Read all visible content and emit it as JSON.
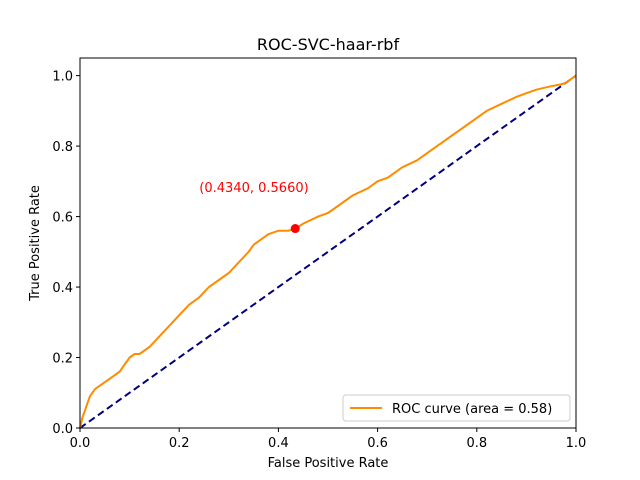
{
  "chart_data": {
    "type": "line",
    "title": "ROC-SVC-haar-rbf",
    "xlabel": "False Positive Rate",
    "ylabel": "True Positive Rate",
    "xlim": [
      0.0,
      1.0
    ],
    "ylim": [
      0.0,
      1.05
    ],
    "xticks": [
      "0.0",
      "0.2",
      "0.4",
      "0.6",
      "0.8",
      "1.0"
    ],
    "yticks": [
      "0.0",
      "0.2",
      "0.4",
      "0.6",
      "0.8",
      "1.0"
    ],
    "grid": false,
    "legend": {
      "position": "lower-right",
      "entries": [
        "ROC curve (area = 0.58)"
      ]
    },
    "series": [
      {
        "name": "ROC curve (area = 0.58)",
        "color": "#ff8c00",
        "style": "solid",
        "x": [
          0.0,
          0.005,
          0.01,
          0.015,
          0.02,
          0.03,
          0.04,
          0.05,
          0.06,
          0.08,
          0.1,
          0.11,
          0.12,
          0.13,
          0.14,
          0.16,
          0.18,
          0.2,
          0.22,
          0.24,
          0.26,
          0.28,
          0.3,
          0.32,
          0.34,
          0.35,
          0.36,
          0.37,
          0.38,
          0.4,
          0.42,
          0.434,
          0.45,
          0.48,
          0.5,
          0.52,
          0.55,
          0.58,
          0.6,
          0.62,
          0.65,
          0.68,
          0.7,
          0.72,
          0.75,
          0.78,
          0.8,
          0.82,
          0.85,
          0.88,
          0.9,
          0.92,
          0.95,
          0.97,
          0.98,
          0.99,
          1.0
        ],
        "y": [
          0.0,
          0.03,
          0.05,
          0.07,
          0.09,
          0.11,
          0.12,
          0.13,
          0.14,
          0.16,
          0.2,
          0.21,
          0.21,
          0.22,
          0.23,
          0.26,
          0.29,
          0.32,
          0.35,
          0.37,
          0.4,
          0.42,
          0.44,
          0.47,
          0.5,
          0.52,
          0.53,
          0.54,
          0.55,
          0.56,
          0.56,
          0.566,
          0.58,
          0.6,
          0.61,
          0.63,
          0.66,
          0.68,
          0.7,
          0.71,
          0.74,
          0.76,
          0.78,
          0.8,
          0.83,
          0.86,
          0.88,
          0.9,
          0.92,
          0.94,
          0.95,
          0.96,
          0.97,
          0.975,
          0.98,
          0.99,
          1.0
        ]
      },
      {
        "name": "",
        "color": "#000080",
        "style": "dashed",
        "x": [
          0.0,
          1.0
        ],
        "y": [
          0.0,
          1.0
        ]
      }
    ],
    "point": {
      "x": 0.434,
      "y": 0.566,
      "color": "#ff0000",
      "label": "(0.4340, 0.5660)"
    }
  }
}
